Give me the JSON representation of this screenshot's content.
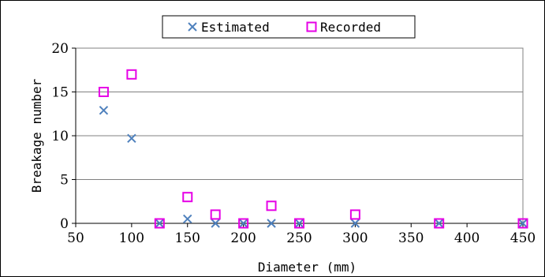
{
  "chart_data": {
    "type": "scatter",
    "xlabel": "Diameter (mm)",
    "ylabel": "Breakage number",
    "xlim": [
      50,
      450
    ],
    "ylim": [
      0,
      20
    ],
    "xticks": [
      50,
      100,
      150,
      200,
      250,
      300,
      350,
      400,
      450
    ],
    "yticks": [
      0,
      5,
      10,
      15,
      20
    ],
    "grid": "horizontal",
    "legend": "top",
    "series": [
      {
        "name": "Estimated",
        "marker": "x",
        "color": "#4f81bd",
        "x": [
          75,
          100,
          125,
          150,
          175,
          200,
          225,
          250,
          300,
          375,
          450
        ],
        "y": [
          12.9,
          9.7,
          0,
          0.5,
          0,
          0,
          0,
          0,
          0,
          0,
          0
        ]
      },
      {
        "name": "Recorded",
        "marker": "square",
        "color": "#e600e6",
        "x": [
          75,
          100,
          125,
          150,
          175,
          200,
          225,
          250,
          300,
          375,
          450
        ],
        "y": [
          15,
          17,
          0,
          3,
          1,
          0,
          2,
          0,
          1,
          0,
          0
        ]
      }
    ]
  }
}
